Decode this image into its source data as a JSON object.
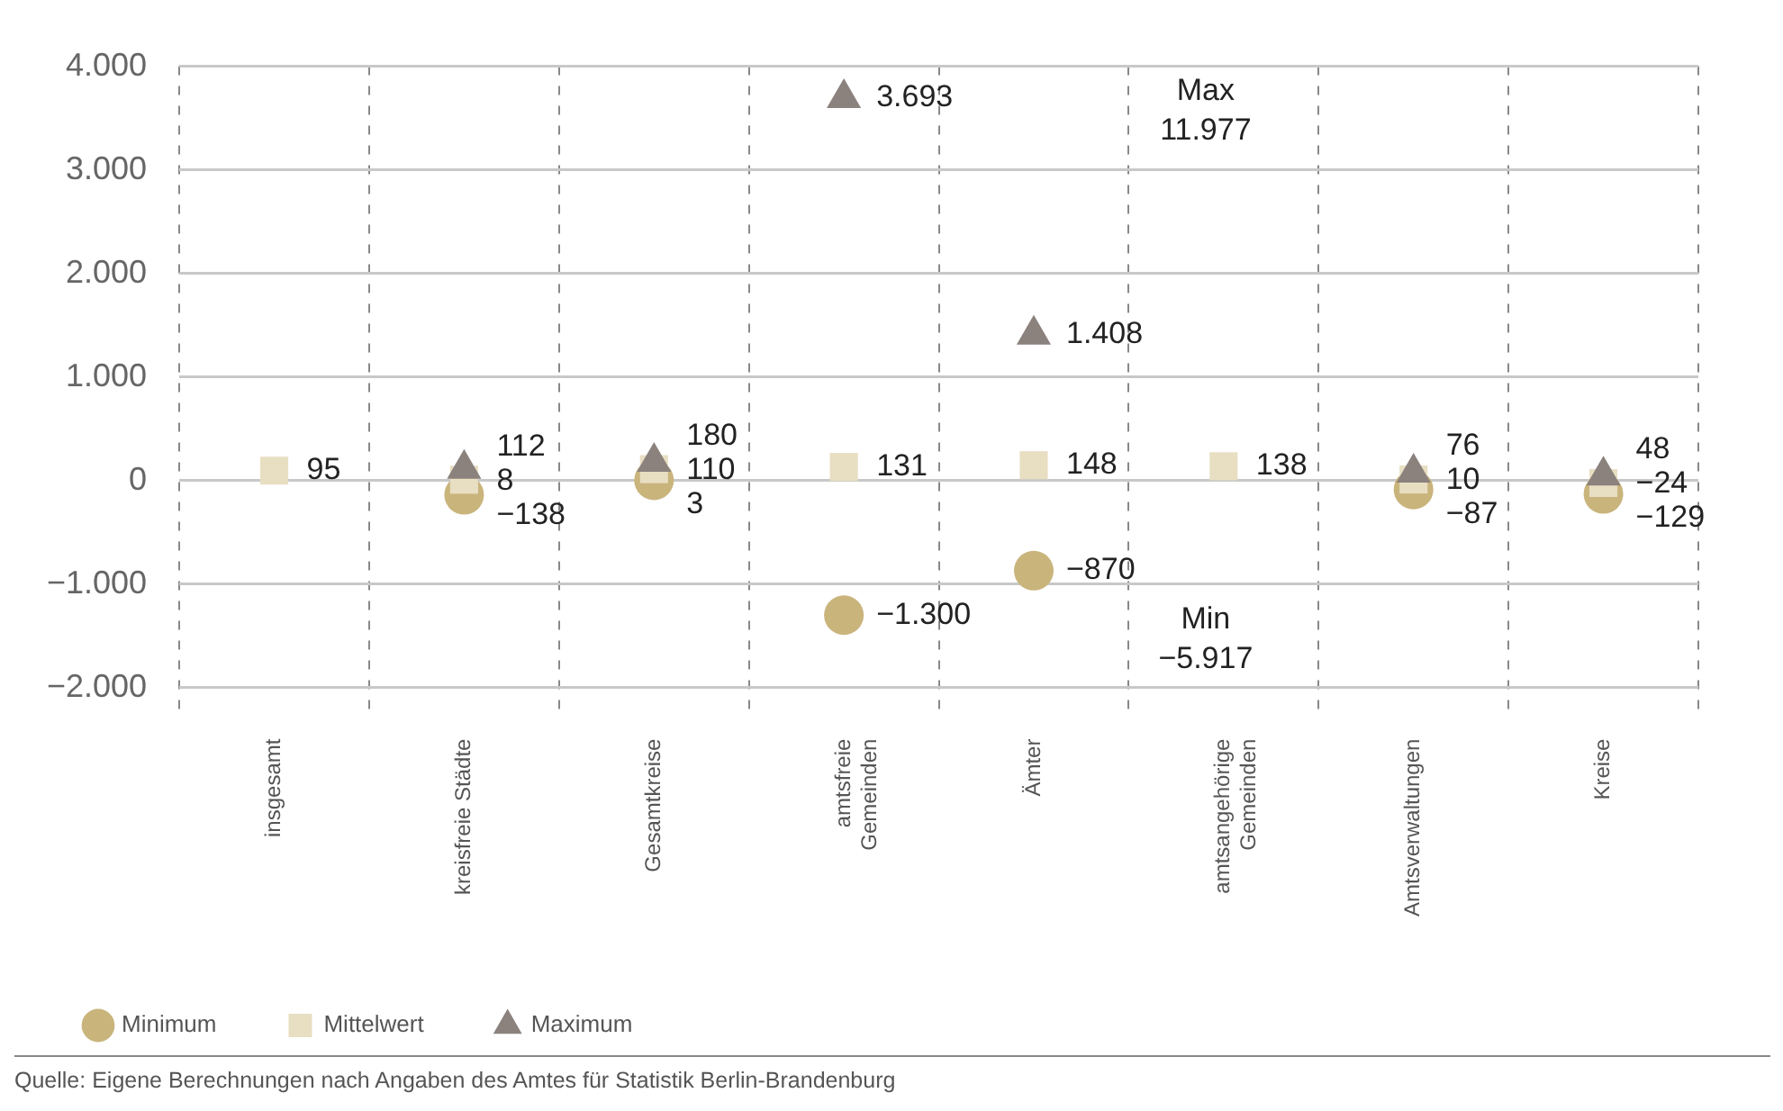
{
  "chart_data": {
    "type": "scatter",
    "categories": [
      "insgesamt",
      "kreisfreie Städte",
      "Gesamtkreise",
      "amtsfreie Gemeinden",
      "Ämter",
      "amtsangehörige Gemeinden",
      "Amtsverwaltungen",
      "Kreise"
    ],
    "ylim": [
      -2250,
      4000
    ],
    "yticks": [
      {
        "value": -2000,
        "label": "−2.000"
      },
      {
        "value": -1000,
        "label": "−1.000"
      },
      0,
      {
        "value": 1000,
        "label": "1.000"
      },
      {
        "value": 2000,
        "label": "2.000"
      },
      {
        "value": 3000,
        "label": "3.000"
      },
      {
        "value": 4000,
        "label": "4.000"
      }
    ],
    "grid": true,
    "legend": "bottom left",
    "series": [
      {
        "name": "Minimum",
        "color": "#c9b47c",
        "marker": "circle",
        "values": [
          null,
          -138,
          3,
          -1300,
          -870,
          null,
          -87,
          -129
        ],
        "value_labels": [
          null,
          "−138",
          "3",
          "−1.300",
          "−870",
          null,
          "−87",
          "−129"
        ]
      },
      {
        "name": "Mittelwert",
        "color": "#e8dec2",
        "marker": "square",
        "values": [
          95,
          8,
          110,
          131,
          148,
          138,
          10,
          -24
        ],
        "value_labels": [
          "95",
          "8",
          "110",
          "131",
          "148",
          "138",
          "10",
          "−24"
        ]
      },
      {
        "name": "Maximum",
        "color": "#8b817d",
        "marker": "triangle",
        "values": [
          null,
          112,
          180,
          3693,
          1408,
          null,
          76,
          48
        ],
        "value_labels": [
          null,
          "112",
          "180",
          "3.693",
          "1.408",
          null,
          "76",
          "48"
        ]
      }
    ],
    "annotations": [
      "Max 11.977",
      "Min −5.917",
      "Quelle:  Eigene Berechnungen nach Angaben des Amtes für Statistik Berlin-Brandenburg"
    ]
  }
}
